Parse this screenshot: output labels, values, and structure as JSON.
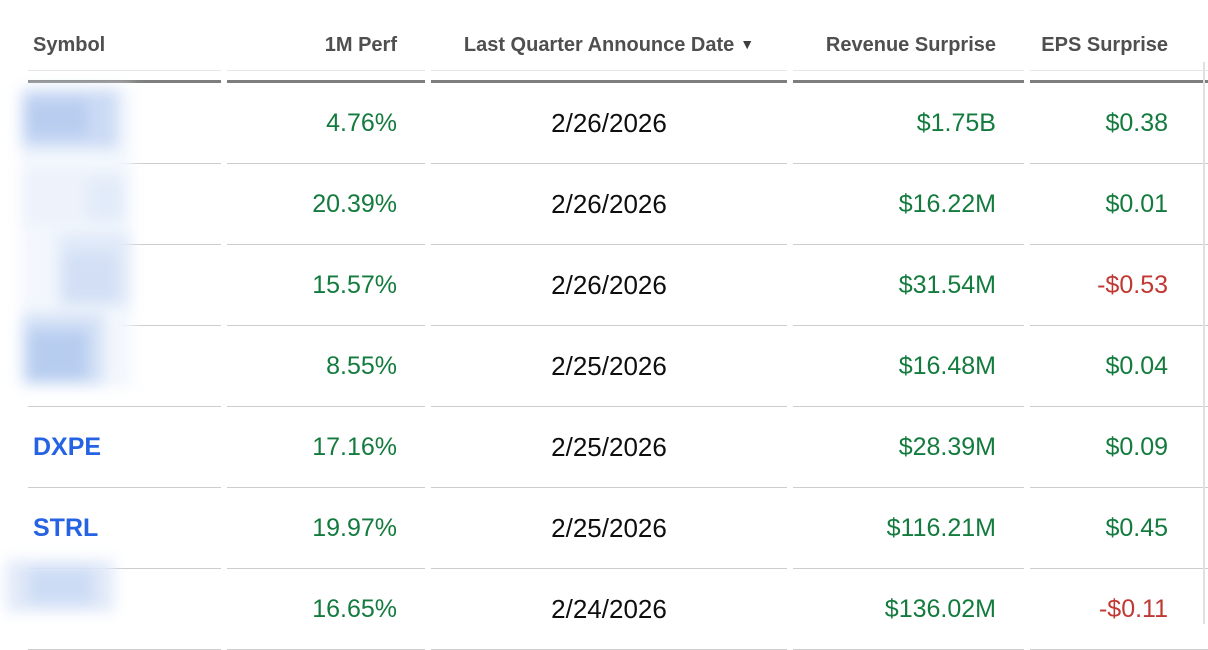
{
  "colors": {
    "positive": "#147b3e",
    "negative": "#c13832",
    "symbol_link": "#2563e3"
  },
  "table": {
    "columns": {
      "symbol": {
        "label": "Symbol"
      },
      "perf": {
        "label": "1M Perf"
      },
      "date": {
        "label": "Last Quarter Announce Date",
        "sort_indicator": "▼",
        "sorted": "desc"
      },
      "revenue": {
        "label": "Revenue Surprise"
      },
      "eps": {
        "label": "EPS Surprise"
      }
    },
    "rows": [
      {
        "symbol": "",
        "symbol_redacted": true,
        "perf": "4.76%",
        "perf_sign": "pos",
        "date": "2/26/2026",
        "revenue": "$1.75B",
        "revenue_sign": "pos",
        "eps": "$0.38",
        "eps_sign": "pos"
      },
      {
        "symbol": "",
        "symbol_redacted": true,
        "perf": "20.39%",
        "perf_sign": "pos",
        "date": "2/26/2026",
        "revenue": "$16.22M",
        "revenue_sign": "pos",
        "eps": "$0.01",
        "eps_sign": "pos"
      },
      {
        "symbol": "",
        "symbol_redacted": true,
        "perf": "15.57%",
        "perf_sign": "pos",
        "date": "2/26/2026",
        "revenue": "$31.54M",
        "revenue_sign": "pos",
        "eps": "-$0.53",
        "eps_sign": "neg"
      },
      {
        "symbol": "",
        "symbol_redacted": true,
        "perf": "8.55%",
        "perf_sign": "pos",
        "date": "2/25/2026",
        "revenue": "$16.48M",
        "revenue_sign": "pos",
        "eps": "$0.04",
        "eps_sign": "pos"
      },
      {
        "symbol": "DXPE",
        "symbol_redacted": false,
        "perf": "17.16%",
        "perf_sign": "pos",
        "date": "2/25/2026",
        "revenue": "$28.39M",
        "revenue_sign": "pos",
        "eps": "$0.09",
        "eps_sign": "pos"
      },
      {
        "symbol": "STRL",
        "symbol_redacted": false,
        "perf": "19.97%",
        "perf_sign": "pos",
        "date": "2/25/2026",
        "revenue": "$116.21M",
        "revenue_sign": "pos",
        "eps": "$0.45",
        "eps_sign": "pos"
      },
      {
        "symbol": "",
        "symbol_redacted": true,
        "perf": "16.65%",
        "perf_sign": "pos",
        "date": "2/24/2026",
        "revenue": "$136.02M",
        "revenue_sign": "pos",
        "eps": "-$0.11",
        "eps_sign": "neg"
      }
    ]
  }
}
